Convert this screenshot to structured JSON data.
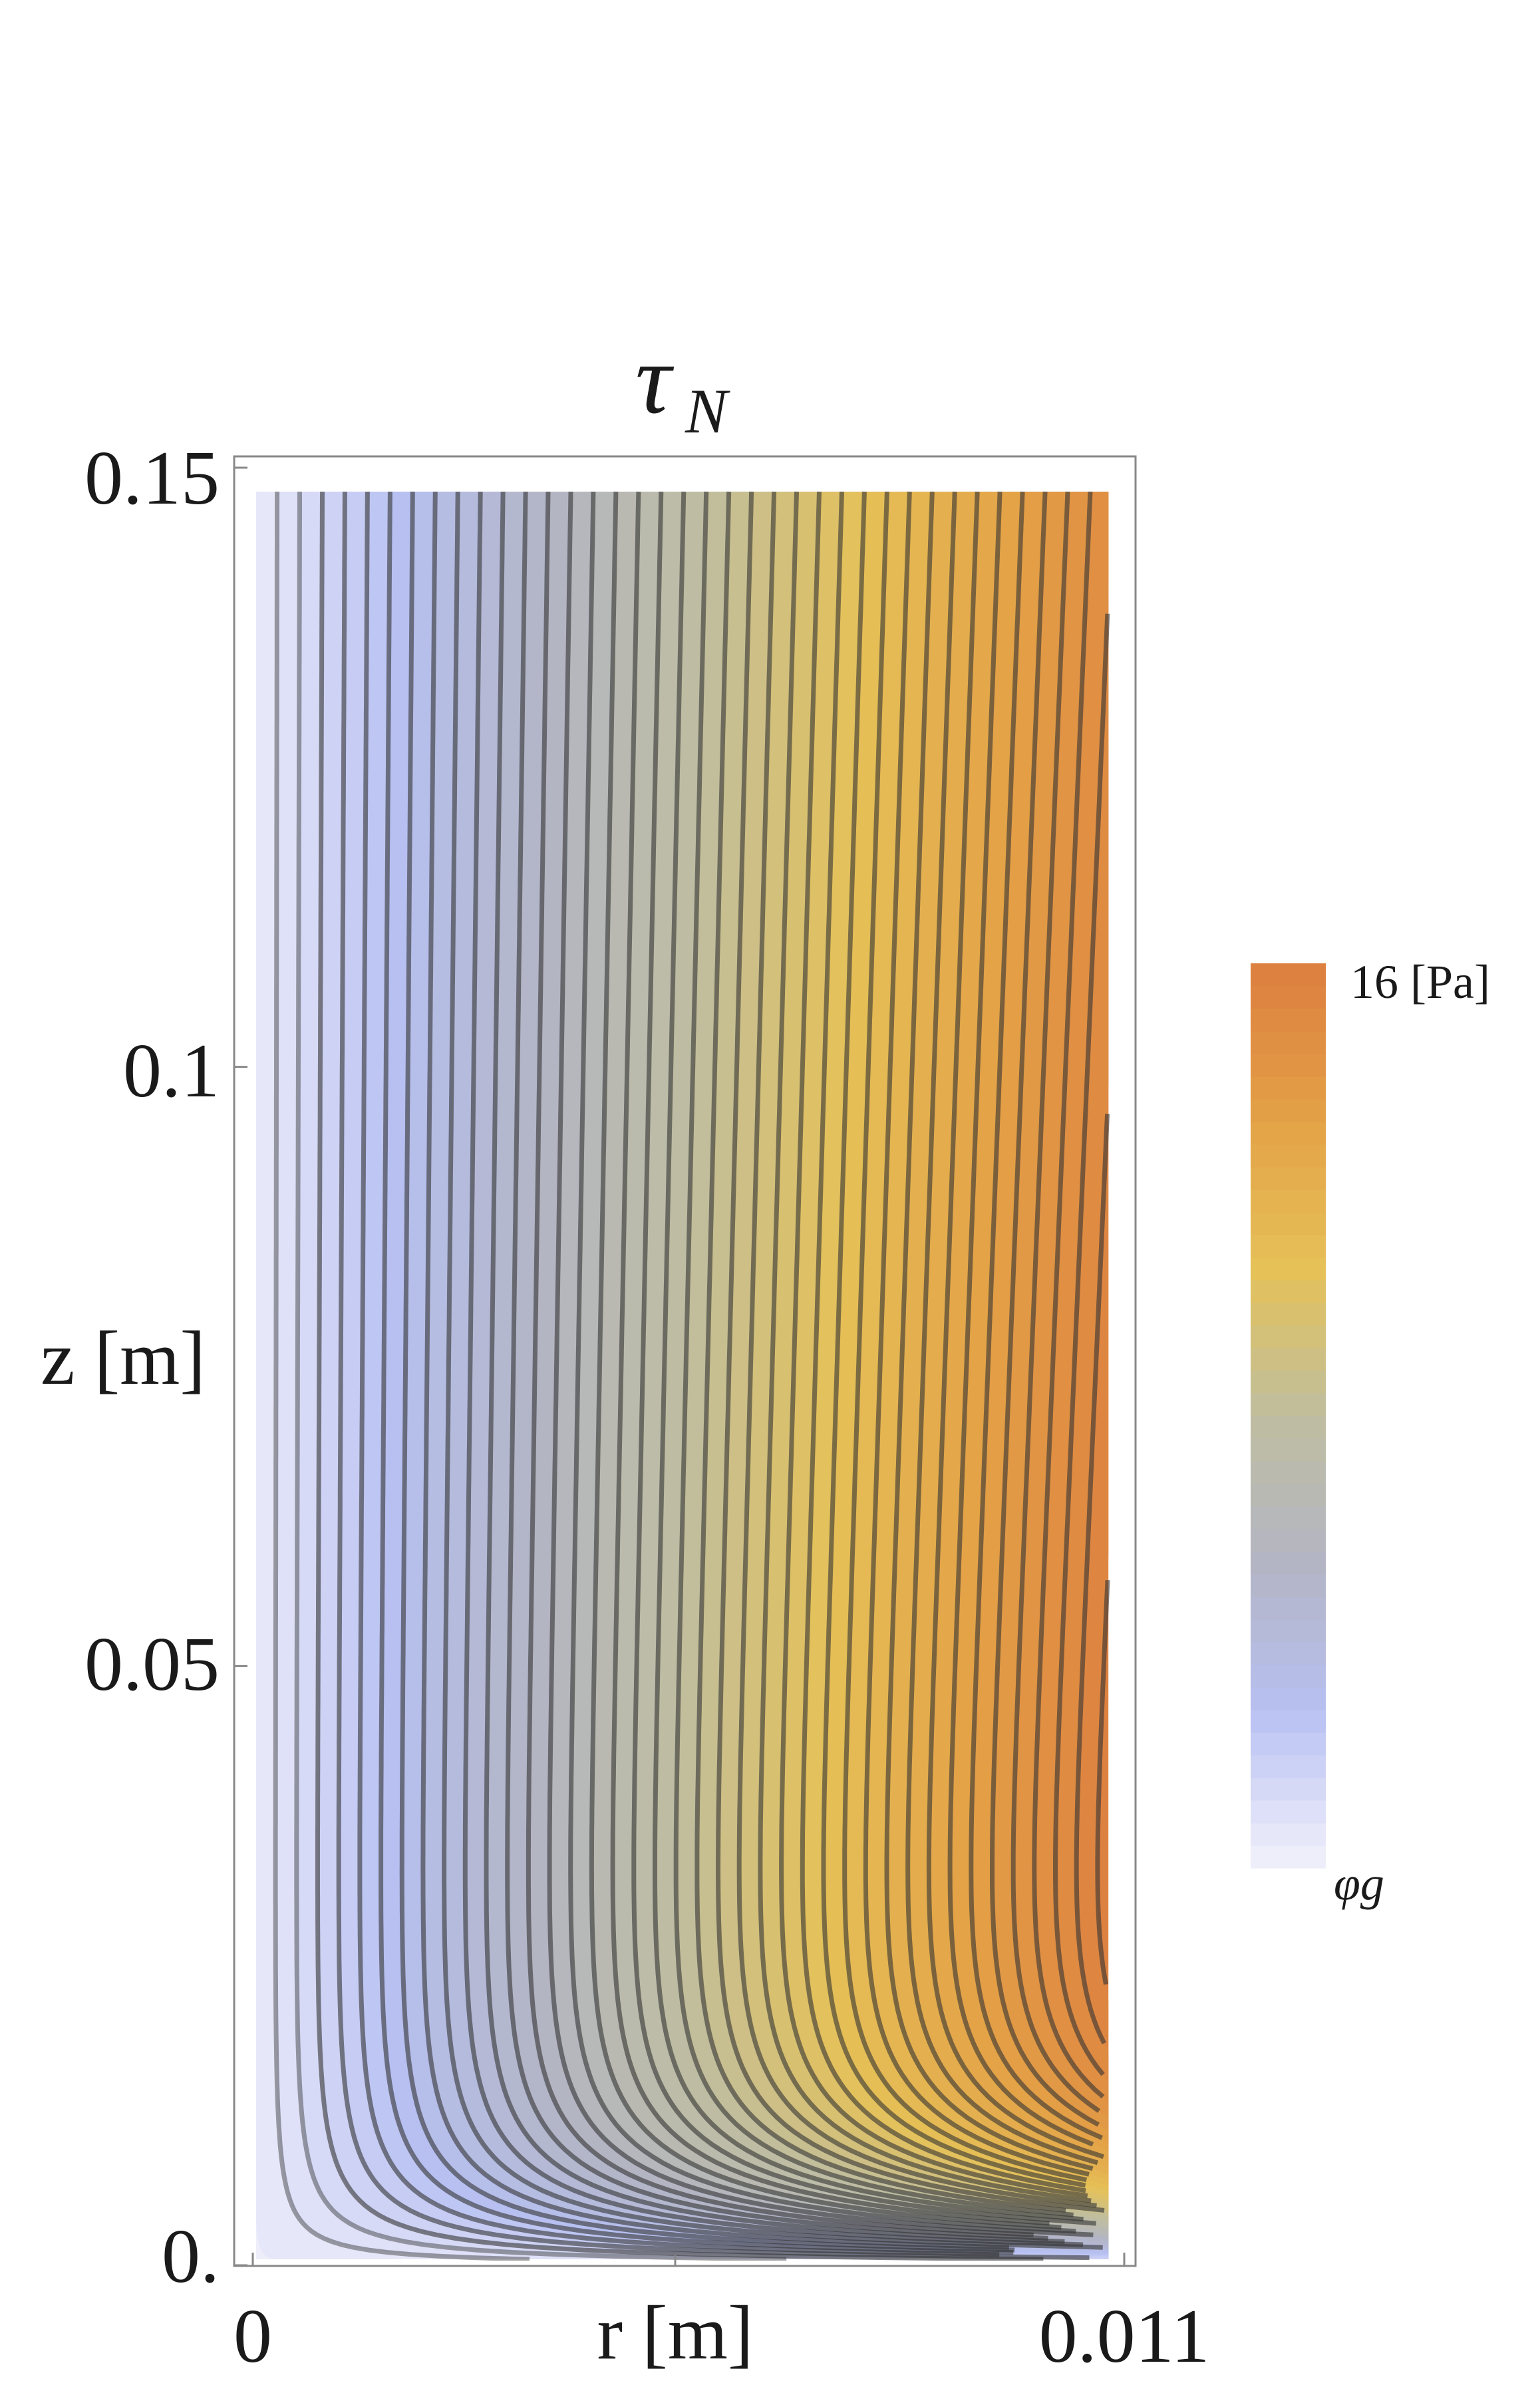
{
  "chart_data": {
    "type": "heatmap",
    "subtype": "contour",
    "title": {
      "symbol": "τ",
      "subscript": "N"
    },
    "xlabel": "r [m]",
    "ylabel": "z [m]",
    "x_ticks": [
      "0",
      "0.011"
    ],
    "y_ticks": [
      "0.",
      "0.05",
      "0.1",
      "0.15"
    ],
    "xlim": [
      0,
      0.011
    ],
    "ylim": [
      0,
      0.15
    ],
    "x_data_range": [
      0,
      0.0108
    ],
    "y_data_range": [
      0.0005,
      0.148
    ],
    "contour_levels": 40,
    "colorbar": {
      "max_label": "16 [Pa]",
      "min_label": "φg",
      "colors": [
        "#eeeefa",
        "#b7c0f2",
        "#b3b5c4",
        "#bfbea0",
        "#e5c158",
        "#e4a247",
        "#dd8140"
      ]
    },
    "frame_color": "#888888",
    "contour_color": "#333333"
  }
}
